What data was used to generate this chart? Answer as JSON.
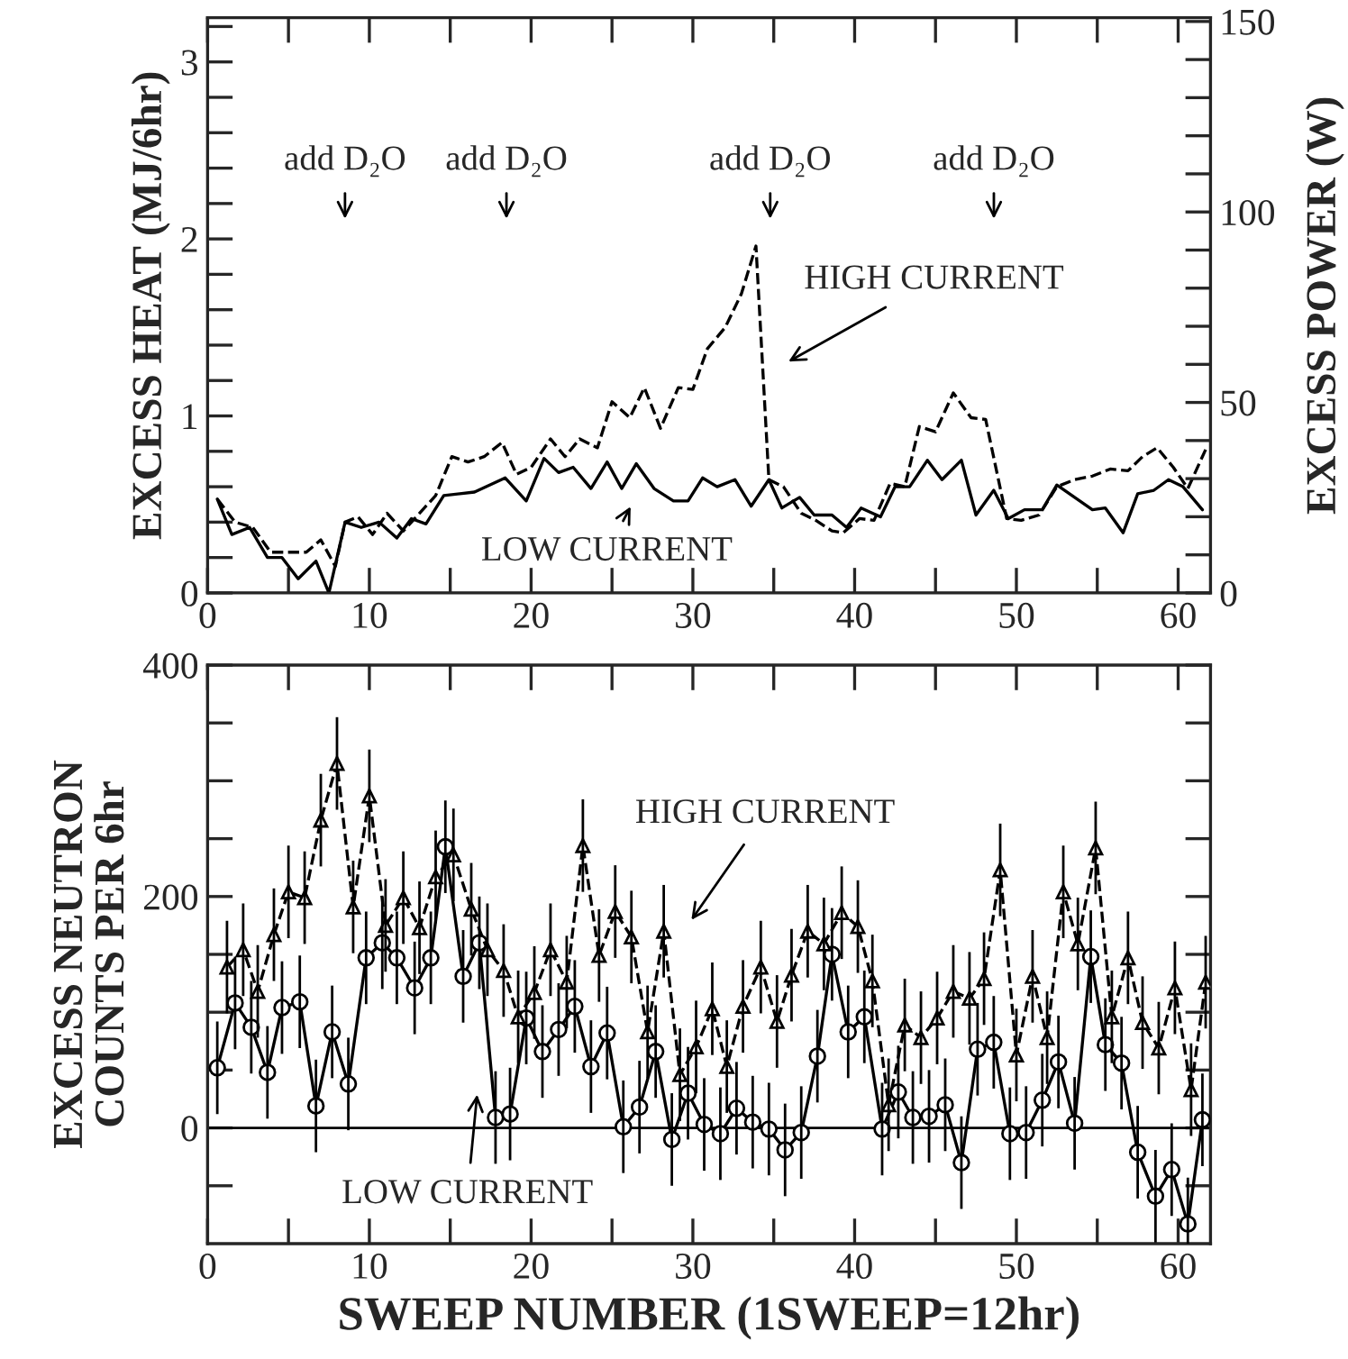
{
  "chart_data": [
    {
      "type": "line",
      "ylabel": "EXCESS HEAT (MJ/6hr)",
      "y2label": "EXCESS POWER (W)",
      "xlim": [
        0,
        62
      ],
      "xticks": [
        0,
        {
          "value": 5,
          "label": null
        },
        10,
        {
          "value": 15,
          "label": null
        },
        20,
        {
          "value": 25,
          "label": null
        },
        30,
        {
          "value": 35,
          "label": null
        },
        40,
        {
          "value": 45,
          "label": null
        },
        50,
        {
          "value": 55,
          "label": null
        },
        60
      ],
      "ylim": [
        0,
        3.25
      ],
      "yticks": [
        0,
        {
          "value": 0.2,
          "label": null
        },
        {
          "value": 0.4,
          "label": null
        },
        {
          "value": 0.6,
          "label": null
        },
        {
          "value": 0.8,
          "label": null
        },
        1,
        {
          "value": 1.2,
          "label": null
        },
        {
          "value": 1.4,
          "label": null
        },
        {
          "value": 1.6,
          "label": null
        },
        {
          "value": 1.8,
          "label": null
        },
        2,
        {
          "value": 2.2,
          "label": null
        },
        {
          "value": 2.4,
          "label": null
        },
        {
          "value": 2.6,
          "label": null
        },
        {
          "value": 2.8,
          "label": null
        },
        3,
        {
          "value": 3.2,
          "label": null
        }
      ],
      "y2lim": [
        0,
        151
      ],
      "y2ticks": [
        0,
        {
          "value": 10,
          "label": null
        },
        {
          "value": 20,
          "label": null
        },
        {
          "value": 30,
          "label": null
        },
        {
          "value": 40,
          "label": null
        },
        50,
        {
          "value": 60,
          "label": null
        },
        {
          "value": 70,
          "label": null
        },
        {
          "value": 80,
          "label": null
        },
        {
          "value": 90,
          "label": null
        },
        100,
        {
          "value": 110,
          "label": null
        },
        {
          "value": 120,
          "label": null
        },
        {
          "value": 130,
          "label": null
        },
        {
          "value": 140,
          "label": null
        },
        150
      ],
      "grid": false,
      "legend": false,
      "annotations": [
        "add D₂O",
        "add D₂O",
        "add D₂O",
        "add D₂O",
        "HIGH CURRENT",
        "LOW CURRENT"
      ],
      "series": [
        {
          "color": "#000000",
          "line_style": "solid",
          "marker": "none",
          "x": [
            0.6,
            1.5,
            2.6,
            3.7,
            4.6,
            5.6,
            6.7,
            7.5,
            8.5,
            9.5,
            10.6,
            11.7,
            12.6,
            13.5,
            14.6,
            16.5,
            18.4,
            19.7,
            20.8,
            21.7,
            22.6,
            23.7,
            24.7,
            25.6,
            26.5,
            27.6,
            28.8,
            29.7,
            30.6,
            31.5,
            32.6,
            33.6,
            34.7,
            35.5,
            36.6,
            37.5,
            38.6,
            39.5,
            40.4,
            41.6,
            42.5,
            43.4,
            44.5,
            45.4,
            46.6,
            47.5,
            48.6,
            49.5,
            50.5,
            51.6,
            52.5,
            53.6,
            54.7,
            55.5,
            56.6,
            57.5,
            58.5,
            59.4,
            60.3,
            61.5
          ],
          "values": [
            0.53,
            0.33,
            0.37,
            0.2,
            0.2,
            0.08,
            0.18,
            0,
            0.4,
            0.37,
            0.4,
            0.31,
            0.42,
            0.39,
            0.55,
            0.57,
            0.65,
            0.52,
            0.76,
            0.68,
            0.71,
            0.59,
            0.74,
            0.59,
            0.73,
            0.59,
            0.52,
            0.52,
            0.65,
            0.6,
            0.64,
            0.49,
            0.64,
            0.48,
            0.54,
            0.44,
            0.44,
            0.37,
            0.48,
            0.43,
            0.6,
            0.6,
            0.75,
            0.64,
            0.75,
            0.44,
            0.58,
            0.42,
            0.47,
            0.47,
            0.61,
            0.54,
            0.47,
            0.48,
            0.34,
            0.56,
            0.58,
            0.64,
            0.6,
            0.47
          ]
        },
        {
          "color": "#000000",
          "line_style": "dashed",
          "marker": "none",
          "x": [
            0.6,
            1.7,
            2.8,
            3.9,
            5.0,
            6.1,
            7.0,
            7.9,
            8.5,
            9.3,
            10.2,
            11.1,
            12.1,
            13.0,
            14.1,
            15.1,
            16.1,
            17.1,
            18.2,
            19.1,
            20.0,
            21.2,
            22.1,
            23.0,
            24.1,
            25.0,
            26.1,
            27.0,
            28.0,
            29.1,
            30.0,
            30.9,
            32.0,
            33.0,
            33.9,
            34.7,
            35.6,
            36.7,
            37.6,
            38.6,
            39.3,
            40.3,
            41.2,
            42.2,
            43.1,
            44.0,
            45.0,
            46.1,
            47.2,
            48.1,
            49.4,
            50.3,
            51.4,
            52.5,
            53.6,
            54.7,
            55.8,
            56.9,
            57.8,
            58.7,
            59.7,
            60.6,
            61.7
          ],
          "values": [
            0.53,
            0.4,
            0.37,
            0.23,
            0.23,
            0.23,
            0.3,
            0.15,
            0.4,
            0.43,
            0.33,
            0.45,
            0.35,
            0.44,
            0.55,
            0.77,
            0.74,
            0.77,
            0.85,
            0.67,
            0.71,
            0.87,
            0.77,
            0.87,
            0.82,
            1.08,
            0.99,
            1.16,
            0.93,
            1.16,
            1.15,
            1.38,
            1.5,
            1.69,
            1.96,
            0.64,
            0.6,
            0.45,
            0.41,
            0.35,
            0.34,
            0.42,
            0.41,
            0.62,
            0.6,
            0.94,
            0.91,
            1.13,
            0.99,
            0.98,
            0.42,
            0.41,
            0.44,
            0.6,
            0.64,
            0.66,
            0.7,
            0.69,
            0.77,
            0.82,
            0.71,
            0.59,
            0.81
          ]
        }
      ]
    },
    {
      "type": "line",
      "xlabel": "SWEEP NUMBER (1SWEEP=12hr)",
      "ylabel": "EXCESS NEUTRON\nCOUNTS PER 6hr",
      "xlim": [
        0,
        62
      ],
      "xticks": [
        0,
        {
          "value": 5,
          "label": null
        },
        10,
        {
          "value": 15,
          "label": null
        },
        20,
        {
          "value": 25,
          "label": null
        },
        30,
        {
          "value": 35,
          "label": null
        },
        40,
        {
          "value": 45,
          "label": null
        },
        50,
        {
          "value": 55,
          "label": null
        },
        60
      ],
      "ylim": [
        -100,
        400
      ],
      "yticks": [
        {
          "value": -50,
          "label": null
        },
        0,
        {
          "value": 50,
          "label": null
        },
        {
          "value": 100,
          "label": null
        },
        {
          "value": 150,
          "label": null
        },
        200,
        {
          "value": 250,
          "label": null
        },
        {
          "value": 300,
          "label": null
        },
        {
          "value": 350,
          "label": null
        },
        400
      ],
      "grid": false,
      "legend": false,
      "ref_lines": [
        {
          "axis": "y",
          "value": 0,
          "color": "#000000",
          "line_style": "solid"
        }
      ],
      "annotations": [
        "HIGH CURRENT",
        "LOW CURRENT"
      ],
      "series": [
        {
          "color": "#000000",
          "line_style": "solid",
          "marker": "circle",
          "x": [
            0.6,
            1.7,
            2.7,
            3.7,
            4.6,
            5.7,
            6.7,
            7.7,
            8.7,
            9.8,
            10.8,
            11.7,
            12.8,
            13.8,
            14.7,
            15.8,
            16.8,
            17.8,
            18.7,
            19.7,
            20.7,
            21.7,
            22.7,
            23.7,
            24.7,
            25.7,
            26.7,
            27.7,
            28.7,
            29.7,
            30.7,
            31.7,
            32.7,
            33.7,
            34.7,
            35.7,
            36.7,
            37.7,
            38.6,
            39.6,
            40.6,
            41.7,
            42.7,
            43.6,
            44.6,
            45.6,
            46.6,
            47.6,
            48.6,
            49.6,
            50.6,
            51.6,
            52.6,
            53.6,
            54.6,
            55.5,
            56.5,
            57.5,
            58.6,
            59.6,
            60.6,
            61.5
          ],
          "values": [
            52,
            108,
            87,
            48,
            104,
            109,
            19,
            83,
            38,
            147,
            160,
            147,
            121,
            147,
            243,
            131,
            160,
            9,
            12,
            95,
            66,
            85,
            105,
            53,
            82,
            1,
            18,
            66,
            -10,
            30,
            3,
            -5,
            17,
            5,
            -1,
            -19,
            -4,
            62,
            150,
            83,
            96,
            -1,
            31,
            9,
            10,
            20,
            -30,
            68,
            74,
            -5,
            -4,
            24,
            57,
            4,
            148,
            72,
            56,
            -21,
            -59,
            -36,
            -83,
            7
          ],
          "errors": [
            40,
            40,
            40,
            40,
            40,
            40,
            40,
            40,
            40,
            40,
            40,
            40,
            40,
            40,
            40,
            40,
            40,
            40,
            40,
            40,
            40,
            40,
            40,
            40,
            40,
            40,
            40,
            40,
            40,
            40,
            40,
            40,
            40,
            40,
            40,
            40,
            40,
            40,
            40,
            40,
            40,
            40,
            40,
            40,
            40,
            40,
            40,
            40,
            40,
            40,
            40,
            40,
            40,
            40,
            40,
            40,
            40,
            40,
            40,
            40,
            40,
            40
          ]
        },
        {
          "color": "#000000",
          "line_style": "dashed",
          "marker": "triangle",
          "x": [
            1.2,
            2.2,
            3.1,
            4.1,
            5.0,
            6.0,
            7.0,
            8.0,
            9.0,
            10.0,
            11.0,
            12.1,
            13.1,
            14.1,
            15.2,
            16.3,
            17.3,
            18.3,
            19.2,
            20.2,
            21.2,
            22.2,
            23.2,
            24.2,
            25.2,
            26.2,
            27.2,
            28.2,
            29.2,
            30.2,
            31.2,
            32.1,
            33.1,
            34.2,
            35.2,
            36.1,
            37.1,
            38.1,
            39.2,
            40.2,
            41.1,
            42.1,
            43.1,
            44.1,
            45.1,
            46.1,
            47.1,
            48.0,
            49.0,
            50.0,
            51.0,
            51.9,
            52.9,
            53.8,
            54.9,
            55.9,
            56.9,
            57.8,
            58.8,
            59.8,
            60.8,
            61.7
          ],
          "values": [
            139,
            154,
            118,
            167,
            204,
            199,
            266,
            315,
            191,
            287,
            175,
            199,
            173,
            217,
            236,
            189,
            154,
            136,
            96,
            117,
            154,
            126,
            244,
            149,
            187,
            165,
            83,
            170,
            46,
            70,
            103,
            53,
            105,
            139,
            92,
            132,
            170,
            159,
            186,
            174,
            127,
            20,
            89,
            78,
            95,
            118,
            112,
            129,
            223,
            63,
            131,
            78,
            204,
            159,
            242,
            96,
            147,
            91,
            69,
            121,
            33,
            126
          ],
          "errors": [
            40,
            40,
            40,
            40,
            40,
            40,
            40,
            40,
            40,
            40,
            40,
            40,
            40,
            40,
            40,
            40,
            40,
            40,
            40,
            40,
            40,
            40,
            40,
            40,
            40,
            40,
            40,
            40,
            40,
            40,
            40,
            40,
            40,
            40,
            40,
            40,
            40,
            40,
            40,
            40,
            40,
            40,
            40,
            40,
            40,
            40,
            40,
            40,
            40,
            40,
            40,
            40,
            40,
            40,
            40,
            40,
            40,
            40,
            40,
            40,
            40,
            40
          ]
        }
      ]
    }
  ]
}
